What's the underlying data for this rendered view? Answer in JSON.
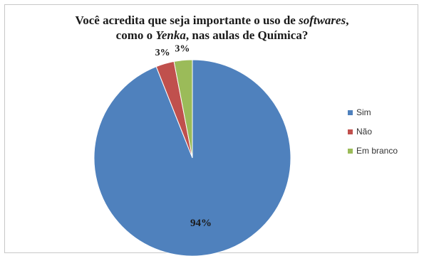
{
  "chart_data": {
    "type": "pie",
    "title_line1": {
      "before": "Você acredita que seja importante o uso de ",
      "italic": "softwares",
      "after": ","
    },
    "title_line2": {
      "before": "como o ",
      "italic": "Yenka",
      "after": ", nas aulas de Química?"
    },
    "categories": [
      "Sim",
      "Não",
      "Em branco"
    ],
    "values": [
      94,
      3,
      3
    ],
    "data_labels": [
      "94%",
      "3%",
      "3%"
    ],
    "colors": [
      "#4f81bd",
      "#c0504d",
      "#9bbb59"
    ],
    "legend_position": "right"
  }
}
